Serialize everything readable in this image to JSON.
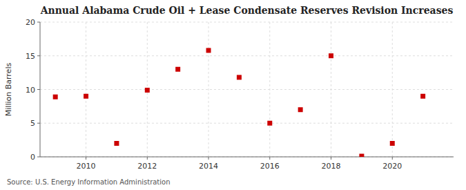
{
  "chart_data": {
    "type": "scatter",
    "title": "Annual Alabama Crude Oil + Lease Condensate Reserves Revision Increases",
    "ylabel": "Million Barrels",
    "source": "Source: U.S. Energy Information Administration",
    "x": [
      2009,
      2010,
      2011,
      2012,
      2013,
      2014,
      2015,
      2016,
      2017,
      2018,
      2019,
      2020,
      2021
    ],
    "values": [
      8.9,
      9.0,
      2.0,
      9.9,
      13.0,
      15.8,
      11.8,
      5.0,
      7.0,
      15.0,
      0.1,
      2.0,
      9.0
    ],
    "color": "#cc0000",
    "marker": "square",
    "xlim": [
      2008.5,
      2022.0
    ],
    "ylim": [
      0,
      20
    ],
    "xticks": [
      2010,
      2012,
      2014,
      2016,
      2018,
      2020
    ],
    "yticks": [
      0,
      5,
      10,
      15,
      20
    ],
    "grid": true
  }
}
